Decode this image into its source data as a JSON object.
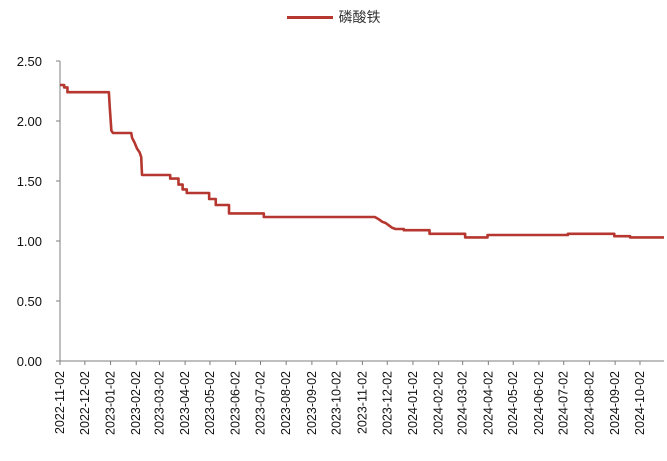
{
  "chart_data": {
    "type": "line",
    "title": "",
    "xlabel": "",
    "ylabel": "",
    "ylim": [
      0,
      2.5
    ],
    "yticks": [
      "0.00",
      "0.50",
      "1.00",
      "1.50",
      "2.00",
      "2.50"
    ],
    "x_range": [
      "2022-11-02",
      "2024-10-31"
    ],
    "xticks": [
      "2022-11-02",
      "2022-12-02",
      "2023-01-02",
      "2023-02-02",
      "2023-03-02",
      "2023-04-02",
      "2023-05-02",
      "2023-06-02",
      "2023-07-02",
      "2023-08-02",
      "2023-09-02",
      "2023-10-02",
      "2023-11-02",
      "2023-12-02",
      "2024-01-02",
      "2024-02-02",
      "2024-03-02",
      "2024-04-02",
      "2024-05-02",
      "2024-06-02",
      "2024-07-02",
      "2024-08-02",
      "2024-09-02",
      "2024-10-02"
    ],
    "grid": false,
    "legend_position": "top-center",
    "series": [
      {
        "name": "磷酸铁",
        "color": "#B5372F",
        "points": [
          [
            "2022-11-02",
            2.3
          ],
          [
            "2022-11-07",
            2.3
          ],
          [
            "2022-11-07",
            2.28
          ],
          [
            "2022-11-11",
            2.28
          ],
          [
            "2022-11-11",
            2.24
          ],
          [
            "2022-12-31",
            2.24
          ],
          [
            "2023-01-01",
            2.12
          ],
          [
            "2023-01-03",
            1.92
          ],
          [
            "2023-01-05",
            1.9
          ],
          [
            "2023-01-27",
            1.9
          ],
          [
            "2023-01-28",
            1.86
          ],
          [
            "2023-01-31",
            1.82
          ],
          [
            "2023-02-03",
            1.77
          ],
          [
            "2023-02-06",
            1.74
          ],
          [
            "2023-02-08",
            1.7
          ],
          [
            "2023-02-09",
            1.55
          ],
          [
            "2023-03-15",
            1.55
          ],
          [
            "2023-03-15",
            1.52
          ],
          [
            "2023-03-25",
            1.52
          ],
          [
            "2023-03-25",
            1.47
          ],
          [
            "2023-03-30",
            1.47
          ],
          [
            "2023-03-30",
            1.43
          ],
          [
            "2023-04-04",
            1.43
          ],
          [
            "2023-04-04",
            1.4
          ],
          [
            "2023-05-01",
            1.4
          ],
          [
            "2023-05-01",
            1.35
          ],
          [
            "2023-05-09",
            1.35
          ],
          [
            "2023-05-09",
            1.3
          ],
          [
            "2023-05-25",
            1.3
          ],
          [
            "2023-05-25",
            1.23
          ],
          [
            "2023-07-06",
            1.23
          ],
          [
            "2023-07-06",
            1.2
          ],
          [
            "2023-11-17",
            1.2
          ],
          [
            "2023-11-22",
            1.18
          ],
          [
            "2023-11-26",
            1.16
          ],
          [
            "2023-11-30",
            1.15
          ],
          [
            "2023-12-04",
            1.13
          ],
          [
            "2023-12-08",
            1.11
          ],
          [
            "2023-12-12",
            1.1
          ],
          [
            "2023-12-22",
            1.1
          ],
          [
            "2023-12-22",
            1.09
          ],
          [
            "2024-01-22",
            1.09
          ],
          [
            "2024-01-22",
            1.06
          ],
          [
            "2024-03-05",
            1.06
          ],
          [
            "2024-03-05",
            1.03
          ],
          [
            "2024-04-01",
            1.03
          ],
          [
            "2024-04-01",
            1.05
          ],
          [
            "2024-07-07",
            1.05
          ],
          [
            "2024-07-07",
            1.06
          ],
          [
            "2024-09-01",
            1.06
          ],
          [
            "2024-09-01",
            1.04
          ],
          [
            "2024-09-20",
            1.04
          ],
          [
            "2024-09-20",
            1.03
          ],
          [
            "2024-10-31",
            1.03
          ]
        ]
      }
    ]
  }
}
